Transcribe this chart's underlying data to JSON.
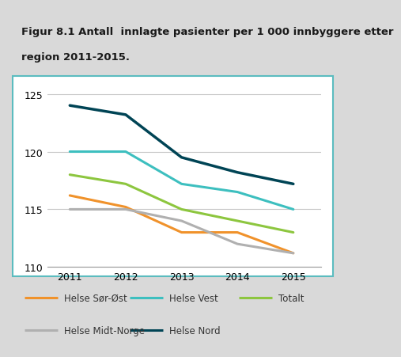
{
  "title_line1": "Figur 8.1 Antall  innlagte pasienter per 1 000 innbyggere etter",
  "title_line2": "region 2011-2015.",
  "years": [
    2011,
    2012,
    2013,
    2014,
    2015
  ],
  "series": {
    "Helse Sør-Øst": {
      "values": [
        116.2,
        115.2,
        113.0,
        113.0,
        111.2
      ],
      "color": "#f0922b",
      "linewidth": 2.2
    },
    "Helse Vest": {
      "values": [
        120.0,
        120.0,
        117.2,
        116.5,
        115.0
      ],
      "color": "#3dbfbf",
      "linewidth": 2.2
    },
    "Totalt": {
      "values": [
        118.0,
        117.2,
        115.0,
        114.0,
        113.0
      ],
      "color": "#8dc63f",
      "linewidth": 2.2
    },
    "Helse Midt-Norge": {
      "values": [
        115.0,
        115.0,
        114.0,
        112.0,
        111.2
      ],
      "color": "#b0b0b0",
      "linewidth": 2.2
    },
    "Helse Nord": {
      "values": [
        124.0,
        123.2,
        119.5,
        118.2,
        117.2
      ],
      "color": "#004455",
      "linewidth": 2.5
    }
  },
  "ylim": [
    110,
    126
  ],
  "yticks": [
    110,
    115,
    120,
    125
  ],
  "xlim": [
    2010.6,
    2015.5
  ],
  "title_fontsize": 9.5,
  "tick_fontsize": 9,
  "title_bg_color": "#d9d9d9",
  "plot_bg_color": "#ffffff",
  "outer_bg_color": "#d9d9d9",
  "grid_color": "#c8c8c8",
  "border_color": "#5bbcbf",
  "legend_order": [
    "Helse Sør-Øst",
    "Helse Vest",
    "Totalt",
    "Helse Midt-Norge",
    "Helse Nord"
  ]
}
